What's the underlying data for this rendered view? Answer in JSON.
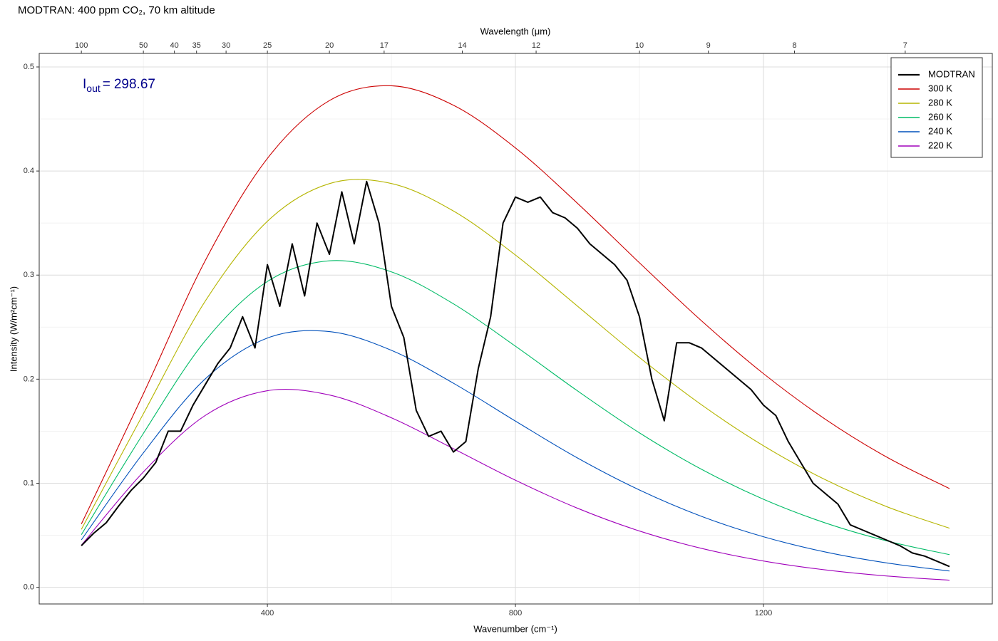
{
  "chart_data": {
    "type": "line",
    "title": "MODTRAN: 400 ppm CO₂, 70 km altitude",
    "xlabel": "Wavenumber (cm⁻¹)",
    "ylabel": "Intensity (W/m²cm⁻¹)",
    "x2label": "Wavelength (μm)",
    "x2_scale": "wavelength",
    "annotation": {
      "symbol": "I",
      "subscript": "out",
      "relation": "=",
      "value": 298.67,
      "color": "#00008b"
    },
    "xlim": [
      32,
      1569
    ],
    "ylim": [
      -0.016,
      0.513
    ],
    "xticks": [
      400,
      800,
      1200
    ],
    "xminor": [
      200,
      600,
      1000,
      1400
    ],
    "yticks": [
      {
        "value": 0,
        "label": "0.0"
      },
      0.1,
      0.2,
      0.3,
      0.4,
      0.5
    ],
    "yminor": [
      0.05,
      0.15,
      0.25,
      0.35,
      0.45
    ],
    "x2ticks": [
      100,
      50,
      40,
      35,
      30,
      25,
      20,
      17,
      14,
      12,
      10,
      9,
      8,
      7
    ],
    "grid": true,
    "legend": "top-right",
    "x": [
      100,
      200,
      300,
      400,
      500,
      600,
      700,
      800,
      900,
      1000,
      1100,
      1200,
      1300,
      1400,
      1500
    ],
    "series": [
      {
        "name": "MODTRAN",
        "color": "#000000",
        "smooth": false,
        "x": [
          100,
          120,
          140,
          160,
          180,
          200,
          220,
          240,
          260,
          280,
          300,
          320,
          340,
          360,
          380,
          400,
          420,
          440,
          460,
          480,
          500,
          520,
          540,
          560,
          580,
          600,
          620,
          640,
          660,
          680,
          700,
          720,
          740,
          760,
          780,
          800,
          820,
          840,
          860,
          880,
          900,
          920,
          940,
          960,
          980,
          1000,
          1020,
          1040,
          1060,
          1080,
          1100,
          1120,
          1140,
          1160,
          1180,
          1200,
          1220,
          1240,
          1260,
          1280,
          1300,
          1320,
          1340,
          1360,
          1380,
          1400,
          1420,
          1440,
          1460,
          1480,
          1500
        ],
        "values": [
          0.04,
          0.052,
          0.062,
          0.078,
          0.093,
          0.105,
          0.12,
          0.15,
          0.15,
          0.175,
          0.195,
          0.215,
          0.23,
          0.26,
          0.23,
          0.31,
          0.27,
          0.33,
          0.28,
          0.35,
          0.32,
          0.38,
          0.33,
          0.39,
          0.35,
          0.27,
          0.24,
          0.17,
          0.145,
          0.15,
          0.13,
          0.14,
          0.21,
          0.26,
          0.35,
          0.375,
          0.37,
          0.375,
          0.36,
          0.355,
          0.345,
          0.33,
          0.32,
          0.31,
          0.295,
          0.26,
          0.2,
          0.16,
          0.235,
          0.235,
          0.23,
          0.22,
          0.21,
          0.2,
          0.19,
          0.175,
          0.165,
          0.14,
          0.12,
          0.1,
          0.09,
          0.08,
          0.06,
          0.055,
          0.05,
          0.045,
          0.04,
          0.033,
          0.03,
          0.025,
          0.02
        ]
      },
      {
        "name": "300 K",
        "color": "#cc0000",
        "smooth": true,
        "values": [
          0.0608,
          0.186,
          0.3142,
          0.4121,
          0.4677,
          0.4819,
          0.4632,
          0.4222,
          0.369,
          0.3118,
          0.2561,
          0.2053,
          0.1614,
          0.1247,
          0.0949
        ]
      },
      {
        "name": "280 K",
        "color": "#b5b500",
        "smooth": true,
        "values": [
          0.0557,
          0.1668,
          0.2752,
          0.3517,
          0.3879,
          0.388,
          0.3616,
          0.3193,
          0.2702,
          0.2208,
          0.1754,
          0.136,
          0.1033,
          0.0772,
          0.0568
        ]
      },
      {
        "name": "260 K",
        "color": "#00bb66",
        "smooth": true,
        "values": [
          0.0506,
          0.1479,
          0.2371,
          0.2939,
          0.3137,
          0.3031,
          0.2724,
          0.2317,
          0.1888,
          0.1484,
          0.1134,
          0.0846,
          0.0618,
          0.0444,
          0.0314
        ]
      },
      {
        "name": "240 K",
        "color": "#0050bb",
        "smooth": true,
        "values": [
          0.0456,
          0.1292,
          0.2004,
          0.2395,
          0.2457,
          0.2277,
          0.1961,
          0.1597,
          0.1243,
          0.0935,
          0.0682,
          0.0486,
          0.0339,
          0.0233,
          0.0157
        ]
      },
      {
        "name": "220 K",
        "color": "#a000bb",
        "smooth": true,
        "values": [
          0.0405,
          0.1109,
          0.1652,
          0.1889,
          0.1848,
          0.1629,
          0.1332,
          0.1029,
          0.076,
          0.0541,
          0.0374,
          0.0253,
          0.0167,
          0.0108,
          0.0069
        ]
      }
    ]
  }
}
